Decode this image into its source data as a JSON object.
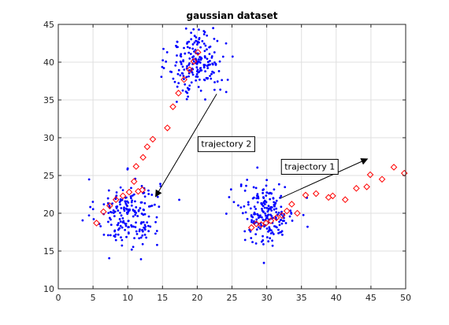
{
  "chart_data": {
    "type": "scatter",
    "title": "gaussian dataset",
    "xlabel": "",
    "ylabel": "",
    "xlim": [
      0,
      50
    ],
    "ylim": [
      10,
      45
    ],
    "xticks": [
      "0",
      "5",
      "10",
      "15",
      "20",
      "25",
      "30",
      "35",
      "40",
      "45",
      "50"
    ],
    "yticks": [
      "10",
      "15",
      "20",
      "25",
      "30",
      "35",
      "40",
      "45"
    ],
    "grid": true,
    "colors": {
      "clusters": "#0000ff",
      "trajectory": "#ff0000",
      "axes": "#262626"
    },
    "clusters": [
      {
        "cx": 10,
        "cy": 20,
        "sx": 2.3,
        "sy": 2.3,
        "n": 200
      },
      {
        "cx": 20,
        "cy": 40,
        "sx": 2.0,
        "sy": 2.3,
        "n": 200
      },
      {
        "cx": 30,
        "cy": 20,
        "sx": 2.0,
        "sy": 2.0,
        "n": 200
      }
    ],
    "trajectory_points": [
      [
        5.5,
        18.7
      ],
      [
        6.5,
        20.2
      ],
      [
        7.4,
        21.0
      ],
      [
        8.3,
        21.8
      ],
      [
        9.3,
        22.3
      ],
      [
        10.2,
        22.8
      ],
      [
        10.9,
        24.2
      ],
      [
        11.5,
        22.9
      ],
      [
        12.1,
        23.1
      ],
      [
        11.2,
        26.2
      ],
      [
        12.2,
        27.4
      ],
      [
        12.8,
        28.8
      ],
      [
        13.6,
        29.8
      ],
      [
        15.7,
        31.3
      ],
      [
        16.5,
        34.1
      ],
      [
        17.3,
        35.9
      ],
      [
        18.1,
        37.7
      ],
      [
        18.9,
        39.0
      ],
      [
        19.5,
        40.1
      ],
      [
        20.1,
        41.3
      ],
      [
        27.8,
        18.1
      ],
      [
        28.5,
        18.6
      ],
      [
        29.2,
        18.5
      ],
      [
        29.9,
        18.7
      ],
      [
        30.6,
        19.0
      ],
      [
        31.4,
        19.4
      ],
      [
        32.2,
        19.7
      ],
      [
        32.9,
        20.3
      ],
      [
        33.6,
        21.2
      ],
      [
        34.4,
        20.0
      ],
      [
        35.6,
        22.4
      ],
      [
        37.1,
        22.6
      ],
      [
        38.9,
        22.1
      ],
      [
        39.5,
        22.3
      ],
      [
        41.3,
        21.8
      ],
      [
        42.9,
        23.3
      ],
      [
        44.4,
        23.5
      ],
      [
        44.9,
        25.1
      ],
      [
        46.6,
        24.5
      ],
      [
        48.3,
        26.1
      ],
      [
        49.8,
        25.3
      ]
    ],
    "annotations": [
      {
        "text": "trajectory 2",
        "label_x": 20.0,
        "label_y": 29.2,
        "arrow_from": [
          22.8,
          35.8
        ],
        "arrow_to": [
          14.0,
          22.2
        ]
      },
      {
        "text": "trajectory 1",
        "label_x": 32.0,
        "label_y": 26.2,
        "arrow_from": [
          32.0,
          22.0
        ],
        "arrow_to": [
          44.5,
          27.2
        ]
      }
    ]
  }
}
